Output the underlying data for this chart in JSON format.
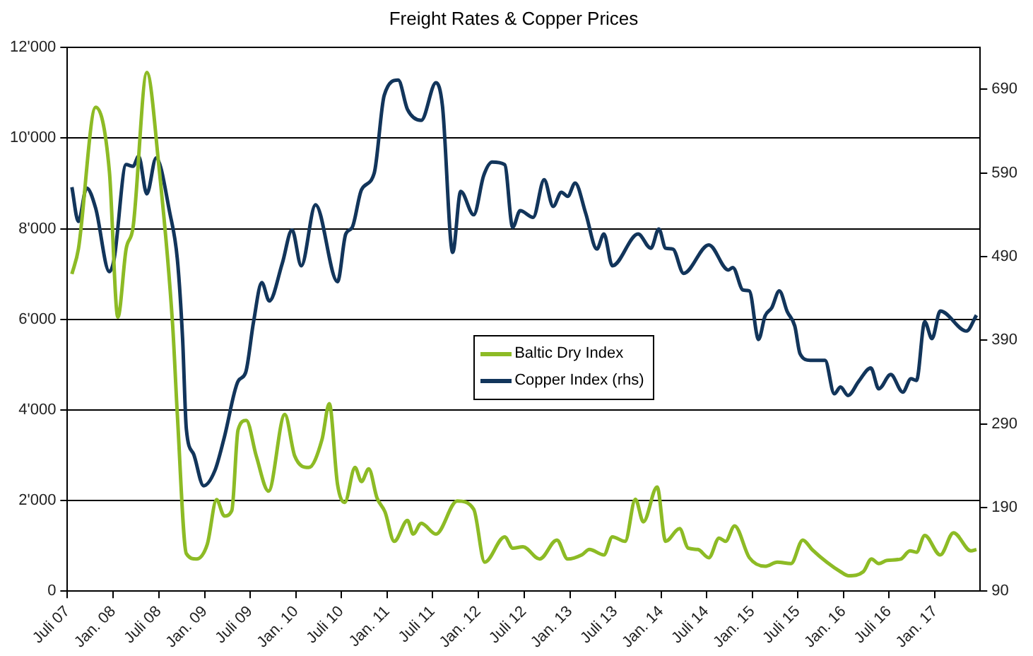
{
  "chart_data": {
    "type": "line",
    "title": "Freight Rates & Copper Prices",
    "xlim": [
      "2007-07",
      "2017-07"
    ],
    "xticks": [
      {
        "value": "2007-07",
        "label": "Juli 07"
      },
      {
        "value": "2008-01",
        "label": "Jan. 08"
      },
      {
        "value": "2008-07",
        "label": "Juli 08"
      },
      {
        "value": "2009-01",
        "label": "Jan. 09"
      },
      {
        "value": "2009-07",
        "label": "Juli 09"
      },
      {
        "value": "2010-01",
        "label": "Jan. 10"
      },
      {
        "value": "2010-07",
        "label": "Juli 10"
      },
      {
        "value": "2011-01",
        "label": "Jan. 11"
      },
      {
        "value": "2011-07",
        "label": "Juli 11"
      },
      {
        "value": "2012-01",
        "label": "Jan. 12"
      },
      {
        "value": "2012-07",
        "label": "Juli 12"
      },
      {
        "value": "2013-01",
        "label": "Jan. 13"
      },
      {
        "value": "2013-07",
        "label": "Juli 13"
      },
      {
        "value": "2014-01",
        "label": "Jan. 14"
      },
      {
        "value": "2014-07",
        "label": "Juli 14"
      },
      {
        "value": "2015-01",
        "label": "Jan. 15"
      },
      {
        "value": "2015-07",
        "label": "Juli 15"
      },
      {
        "value": "2016-01",
        "label": "Jan. 16"
      },
      {
        "value": "2016-07",
        "label": "Juli 16"
      },
      {
        "value": "2017-01",
        "label": "Jan. 17"
      }
    ],
    "ylim": [
      0,
      12000
    ],
    "yticks": [
      0,
      {
        "value": 2000,
        "label": "2'000"
      },
      {
        "value": 4000,
        "label": "4'000"
      },
      {
        "value": 6000,
        "label": "6'000"
      },
      {
        "value": 8000,
        "label": "8'000"
      },
      {
        "value": 10000,
        "label": "10'000"
      },
      {
        "value": 12000,
        "label": "12'000"
      }
    ],
    "y2lim": [
      90,
      740
    ],
    "y2ticks": [
      90,
      190,
      290,
      390,
      490,
      590,
      690
    ],
    "grid": "y",
    "legend": "center",
    "series": [
      {
        "name": "Baltic Dry Index",
        "color": "#8dbb25",
        "x": [
          "2007-07-19",
          "2007-08-14",
          "2007-10-22",
          "2007-12-16",
          "2008-01-19",
          "2008-02-21",
          "2008-03-20",
          "2008-05-14",
          "2008-07-01",
          "2008-08-25",
          "2008-09-13",
          "2008-10-19",
          "2008-11-28",
          "2009-01-11",
          "2009-02-17",
          "2009-03-20",
          "2009-04-19",
          "2009-05-14",
          "2009-06-16",
          "2009-07-26",
          "2009-09-13",
          "2009-11-17",
          "2009-12-27",
          "2010-02-21",
          "2010-04-15",
          "2010-05-14",
          "2010-06-16",
          "2010-07-15",
          "2010-08-25",
          "2010-09-20",
          "2010-10-19",
          "2010-11-21",
          "2010-12-23",
          "2011-01-29",
          "2011-03-23",
          "2011-04-15",
          "2011-05-17",
          "2011-07-15",
          "2011-10-08",
          "2011-12-13",
          "2012-01-26",
          "2012-04-15",
          "2012-05-17",
          "2012-06-27",
          "2012-09-02",
          "2012-11-10",
          "2012-12-23",
          "2013-02-17",
          "2013-03-20",
          "2013-05-17",
          "2013-06-20",
          "2013-08-10",
          "2013-09-20",
          "2013-10-22",
          "2013-12-16",
          "2014-01-19",
          "2014-03-16",
          "2014-04-19",
          "2014-05-28",
          "2014-07-11",
          "2014-08-21",
          "2014-09-16",
          "2014-10-22",
          "2014-12-20",
          "2015-02-21",
          "2015-04-11",
          "2015-06-05",
          "2015-07-22",
          "2015-08-28",
          "2015-10-26",
          "2015-12-20",
          "2016-01-22",
          "2016-03-20",
          "2016-04-22",
          "2016-05-21",
          "2016-06-23",
          "2016-08-17",
          "2016-09-23",
          "2016-10-19",
          "2016-11-21",
          "2017-01-22",
          "2017-03-16",
          "2017-05-25",
          "2017-06-16"
        ],
        "values": [
          7000,
          7550,
          10680,
          9270,
          6050,
          7550,
          8040,
          11450,
          9390,
          5890,
          3900,
          830,
          710,
          1040,
          2020,
          1660,
          1780,
          3560,
          3770,
          2980,
          2210,
          3900,
          2980,
          2730,
          3350,
          4140,
          2360,
          1960,
          2730,
          2420,
          2700,
          2060,
          1750,
          1100,
          1560,
          1260,
          1500,
          1260,
          1990,
          1810,
          640,
          1200,
          950,
          980,
          710,
          1130,
          710,
          800,
          920,
          800,
          1200,
          1100,
          2030,
          1530,
          2300,
          1100,
          1380,
          950,
          920,
          740,
          1170,
          1100,
          1440,
          740,
          550,
          640,
          610,
          1130,
          920,
          640,
          430,
          340,
          430,
          710,
          610,
          680,
          710,
          890,
          860,
          1230,
          800,
          1290,
          890,
          920
        ]
      },
      {
        "name": "Copper Index (rhs)",
        "color": "#12355b",
        "axis": "y2",
        "x": [
          "2007-07-19",
          "2007-08-14",
          "2007-09-16",
          "2007-10-22",
          "2007-12-16",
          "2008-01-04",
          "2008-02-21",
          "2008-03-20",
          "2008-04-11",
          "2008-05-14",
          "2008-06-20",
          "2008-08-14",
          "2008-09-13",
          "2008-10-04",
          "2008-10-19",
          "2008-11-17",
          "2008-12-27",
          "2009-02-10",
          "2009-03-20",
          "2009-05-14",
          "2009-06-13",
          "2009-07-15",
          "2009-08-17",
          "2009-09-16",
          "2009-11-07",
          "2009-12-16",
          "2010-01-22",
          "2010-03-20",
          "2010-06-16",
          "2010-07-19",
          "2010-08-14",
          "2010-09-20",
          "2010-11-10",
          "2010-12-20",
          "2011-02-14",
          "2011-03-23",
          "2011-05-17",
          "2011-07-15",
          "2011-08-10",
          "2011-09-20",
          "2011-10-22",
          "2011-12-13",
          "2012-01-22",
          "2012-02-25",
          "2012-04-15",
          "2012-05-17",
          "2012-06-16",
          "2012-08-07",
          "2012-09-20",
          "2012-10-26",
          "2012-11-28",
          "2012-12-23",
          "2013-01-22",
          "2013-03-05",
          "2013-04-19",
          "2013-05-17",
          "2013-06-20",
          "2013-10-01",
          "2013-11-21",
          "2013-12-23",
          "2014-01-19",
          "2014-02-17",
          "2014-04-01",
          "2014-07-11",
          "2014-09-27",
          "2014-10-15",
          "2014-11-25",
          "2014-12-20",
          "2015-01-26",
          "2015-02-21",
          "2015-03-20",
          "2015-04-19",
          "2015-05-21",
          "2015-06-20",
          "2015-07-11",
          "2015-08-21",
          "2015-10-19",
          "2015-11-25",
          "2015-12-20",
          "2016-01-19",
          "2016-03-02",
          "2016-04-19",
          "2016-05-21",
          "2016-07-08",
          "2016-08-25",
          "2016-09-27",
          "2016-10-19",
          "2016-11-21",
          "2016-12-20",
          "2017-01-22",
          "2017-05-07",
          "2017-06-16"
        ],
        "values": [
          573,
          532,
          572,
          548,
          472,
          487,
          600,
          598,
          610,
          565,
          608,
          542,
          487,
          392,
          284,
          254,
          216,
          234,
          274,
          341,
          351,
          412,
          459,
          437,
          482,
          522,
          479,
          552,
          460,
          517,
          525,
          570,
          590,
          683,
          701,
          666,
          653,
          698,
          670,
          495,
          568,
          540,
          587,
          603,
          600,
          525,
          545,
          537,
          582,
          550,
          567,
          562,
          578,
          542,
          499,
          517,
          479,
          517,
          500,
          523,
          500,
          499,
          470,
          504,
          474,
          477,
          450,
          449,
          391,
          419,
          429,
          449,
          424,
          407,
          374,
          366,
          366,
          326,
          334,
          324,
          341,
          357,
          332,
          349,
          328,
          344,
          342,
          412,
          392,
          425,
          401,
          420
        ]
      }
    ]
  }
}
